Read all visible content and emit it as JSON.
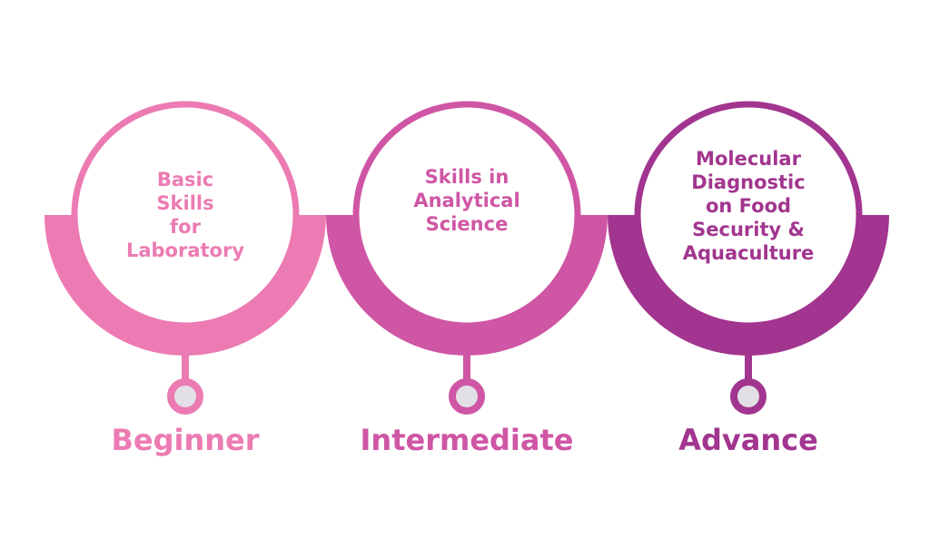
{
  "stages": [
    {
      "topic": "Basic\nSkills\nfor\nLaboratory",
      "level": "Beginner",
      "color": "#ec7bb3"
    },
    {
      "topic": "Skills in\nAnalytical\nScience",
      "level": "Intermediate",
      "color": "#cf56a4"
    },
    {
      "topic": "Molecular\nDiagnostic\non Food\nSecurity &\nAquaculture",
      "level": "Advance",
      "color": "#a2358f"
    }
  ],
  "node_fill": "#e2e0e6"
}
